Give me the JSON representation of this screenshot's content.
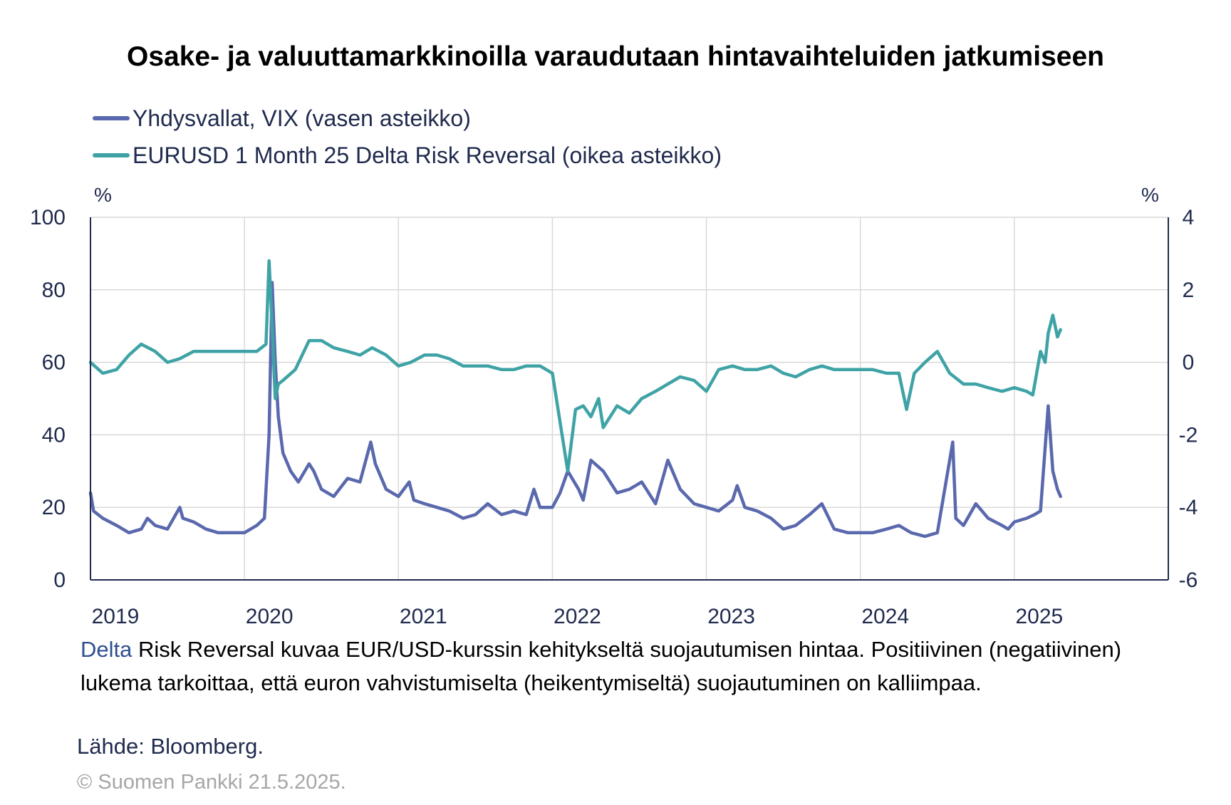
{
  "chart_data": {
    "type": "line",
    "title": "Osake- ja valuuttamarkkinoilla varaudutaan hintavaihteluiden jatkumiseen",
    "left_axis": {
      "unit": "%",
      "min": 0,
      "max": 100,
      "ticks": [
        0,
        20,
        40,
        60,
        80,
        100
      ]
    },
    "right_axis": {
      "unit": "%",
      "min": -6,
      "max": 4,
      "ticks": [
        -6,
        -4,
        -2,
        0,
        2,
        4
      ]
    },
    "x_axis": {
      "min": 2019.0,
      "max": 2026.0,
      "ticks": [
        2019,
        2020,
        2021,
        2022,
        2023,
        2024,
        2025
      ],
      "tick_labels": [
        "2019",
        "2020",
        "2021",
        "2022",
        "2023",
        "2024",
        "2025"
      ]
    },
    "grid": true,
    "legend_position": "top-left",
    "series": [
      {
        "name": "Yhdysvallat, VIX (vasen asteikko)",
        "axis": "left",
        "color": "#5a68ad",
        "x": [
          2019.0,
          2019.02,
          2019.08,
          2019.17,
          2019.25,
          2019.33,
          2019.37,
          2019.42,
          2019.5,
          2019.58,
          2019.6,
          2019.67,
          2019.75,
          2019.83,
          2019.92,
          2020.0,
          2020.08,
          2020.13,
          2020.16,
          2020.18,
          2020.2,
          2020.22,
          2020.25,
          2020.3,
          2020.35,
          2020.42,
          2020.45,
          2020.5,
          2020.58,
          2020.67,
          2020.75,
          2020.82,
          2020.85,
          2020.92,
          2021.0,
          2021.07,
          2021.1,
          2021.17,
          2021.25,
          2021.33,
          2021.42,
          2021.5,
          2021.58,
          2021.67,
          2021.75,
          2021.83,
          2021.88,
          2021.92,
          2022.0,
          2022.05,
          2022.1,
          2022.17,
          2022.2,
          2022.25,
          2022.33,
          2022.42,
          2022.5,
          2022.58,
          2022.67,
          2022.75,
          2022.83,
          2022.92,
          2023.0,
          2023.08,
          2023.17,
          2023.2,
          2023.25,
          2023.33,
          2023.42,
          2023.5,
          2023.58,
          2023.67,
          2023.75,
          2023.83,
          2023.92,
          2024.0,
          2024.08,
          2024.17,
          2024.25,
          2024.33,
          2024.42,
          2024.5,
          2024.6,
          2024.62,
          2024.67,
          2024.75,
          2024.83,
          2024.92,
          2024.96,
          2025.0,
          2025.08,
          2025.13,
          2025.17,
          2025.22,
          2025.25,
          2025.28,
          2025.3
        ],
        "values": [
          24,
          19,
          17,
          15,
          13,
          14,
          17,
          15,
          14,
          20,
          17,
          16,
          14,
          13,
          13,
          13,
          15,
          17,
          40,
          82,
          60,
          45,
          35,
          30,
          27,
          32,
          30,
          25,
          23,
          28,
          27,
          38,
          32,
          25,
          23,
          27,
          22,
          21,
          20,
          19,
          17,
          18,
          21,
          18,
          19,
          18,
          25,
          20,
          20,
          24,
          30,
          25,
          22,
          33,
          30,
          24,
          25,
          27,
          21,
          33,
          25,
          21,
          20,
          19,
          22,
          26,
          20,
          19,
          17,
          14,
          15,
          18,
          21,
          14,
          13,
          13,
          13,
          14,
          15,
          13,
          12,
          13,
          38,
          17,
          15,
          21,
          17,
          15,
          14,
          16,
          17,
          18,
          19,
          48,
          30,
          25,
          23
        ]
      },
      {
        "name": "EURUSD 1 Month 25 Delta Risk Reversal (oikea asteikko)",
        "axis": "right",
        "color": "#3fa3a6",
        "x": [
          2019.0,
          2019.08,
          2019.17,
          2019.25,
          2019.33,
          2019.42,
          2019.5,
          2019.58,
          2019.67,
          2019.75,
          2019.83,
          2019.92,
          2020.0,
          2020.08,
          2020.14,
          2020.16,
          2020.18,
          2020.2,
          2020.22,
          2020.25,
          2020.33,
          2020.42,
          2020.5,
          2020.58,
          2020.67,
          2020.75,
          2020.83,
          2020.92,
          2021.0,
          2021.08,
          2021.17,
          2021.25,
          2021.33,
          2021.42,
          2021.5,
          2021.58,
          2021.67,
          2021.75,
          2021.83,
          2021.92,
          2022.0,
          2022.1,
          2022.15,
          2022.2,
          2022.25,
          2022.3,
          2022.33,
          2022.42,
          2022.5,
          2022.58,
          2022.67,
          2022.75,
          2022.83,
          2022.92,
          2023.0,
          2023.08,
          2023.17,
          2023.25,
          2023.33,
          2023.42,
          2023.5,
          2023.58,
          2023.67,
          2023.75,
          2023.83,
          2023.92,
          2024.0,
          2024.08,
          2024.17,
          2024.25,
          2024.3,
          2024.35,
          2024.42,
          2024.5,
          2024.58,
          2024.67,
          2024.75,
          2024.83,
          2024.92,
          2025.0,
          2025.08,
          2025.12,
          2025.17,
          2025.2,
          2025.22,
          2025.25,
          2025.28,
          2025.3
        ],
        "values": [
          0.0,
          -0.3,
          -0.2,
          0.2,
          0.5,
          0.3,
          0.0,
          0.1,
          0.3,
          0.3,
          0.3,
          0.3,
          0.3,
          0.3,
          0.5,
          2.8,
          1.0,
          -1.0,
          -0.6,
          -0.5,
          -0.2,
          0.6,
          0.6,
          0.4,
          0.3,
          0.2,
          0.4,
          0.2,
          -0.1,
          0.0,
          0.2,
          0.2,
          0.1,
          -0.1,
          -0.1,
          -0.1,
          -0.2,
          -0.2,
          -0.1,
          -0.1,
          -0.3,
          -3.0,
          -1.3,
          -1.2,
          -1.5,
          -1.0,
          -1.8,
          -1.2,
          -1.4,
          -1.0,
          -0.8,
          -0.6,
          -0.4,
          -0.5,
          -0.8,
          -0.2,
          -0.1,
          -0.2,
          -0.2,
          -0.1,
          -0.3,
          -0.4,
          -0.2,
          -0.1,
          -0.2,
          -0.2,
          -0.2,
          -0.2,
          -0.3,
          -0.3,
          -1.3,
          -0.3,
          0.0,
          0.3,
          -0.3,
          -0.6,
          -0.6,
          -0.7,
          -0.8,
          -0.7,
          -0.8,
          -0.9,
          0.3,
          0.0,
          0.8,
          1.3,
          0.7,
          0.9
        ]
      }
    ]
  },
  "note": {
    "lead": "Delta",
    "text": "Risk Reversal kuvaa EUR/USD-kurssin kehitykseltä suojautumisen hintaa. Positiivinen (negatiivinen) lukema tarkoittaa, että euron vahvistumiselta (heikentymiseltä) suojautuminen on kalliimpaa."
  },
  "source": "Lähde: Bloomberg.",
  "copyright": "© Suomen Pankki 21.5.2025."
}
